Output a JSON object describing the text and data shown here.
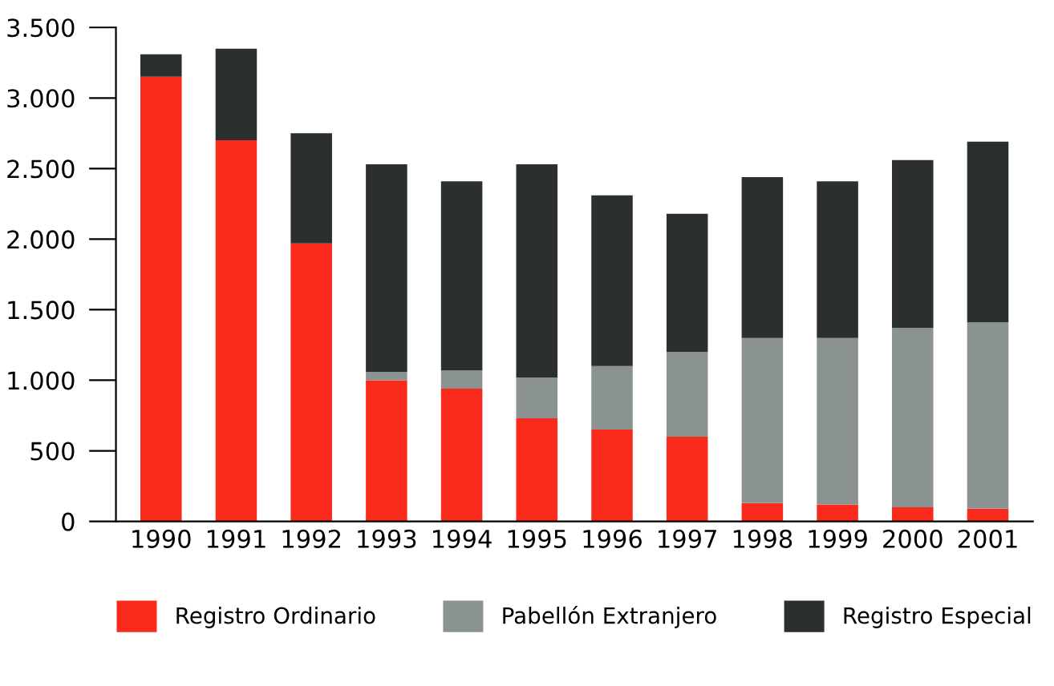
{
  "chart_data": {
    "type": "bar",
    "stacked": true,
    "categories": [
      "1990",
      "1991",
      "1992",
      "1993",
      "1994",
      "1995",
      "1996",
      "1997",
      "1998",
      "1999",
      "2000",
      "2001"
    ],
    "series": [
      {
        "name": "Registro Ordinario",
        "color": "#fa2a1c",
        "values": [
          3150,
          2700,
          1970,
          1000,
          940,
          730,
          650,
          600,
          130,
          120,
          100,
          90
        ]
      },
      {
        "name": "Pabellón Extranjero",
        "color": "#8b9392",
        "values": [
          0,
          0,
          0,
          60,
          130,
          290,
          450,
          600,
          1170,
          1180,
          1270,
          1320
        ]
      },
      {
        "name": "Registro Especial",
        "color": "#2b2f2f",
        "values": [
          160,
          650,
          780,
          1470,
          1340,
          1510,
          1210,
          980,
          1140,
          1110,
          1190,
          1280
        ]
      }
    ],
    "ylim": [
      0,
      3500
    ],
    "yticks": [
      0,
      500,
      {
        "value": 1000,
        "label": "1.000"
      },
      {
        "value": 1500,
        "label": "1.500"
      },
      {
        "value": 2000,
        "label": "2.000"
      },
      {
        "value": 2500,
        "label": "2.500"
      },
      {
        "value": 3000,
        "label": "3.000"
      },
      {
        "value": 3500,
        "label": "3.500"
      }
    ],
    "grid": false,
    "legend": "bottom"
  }
}
